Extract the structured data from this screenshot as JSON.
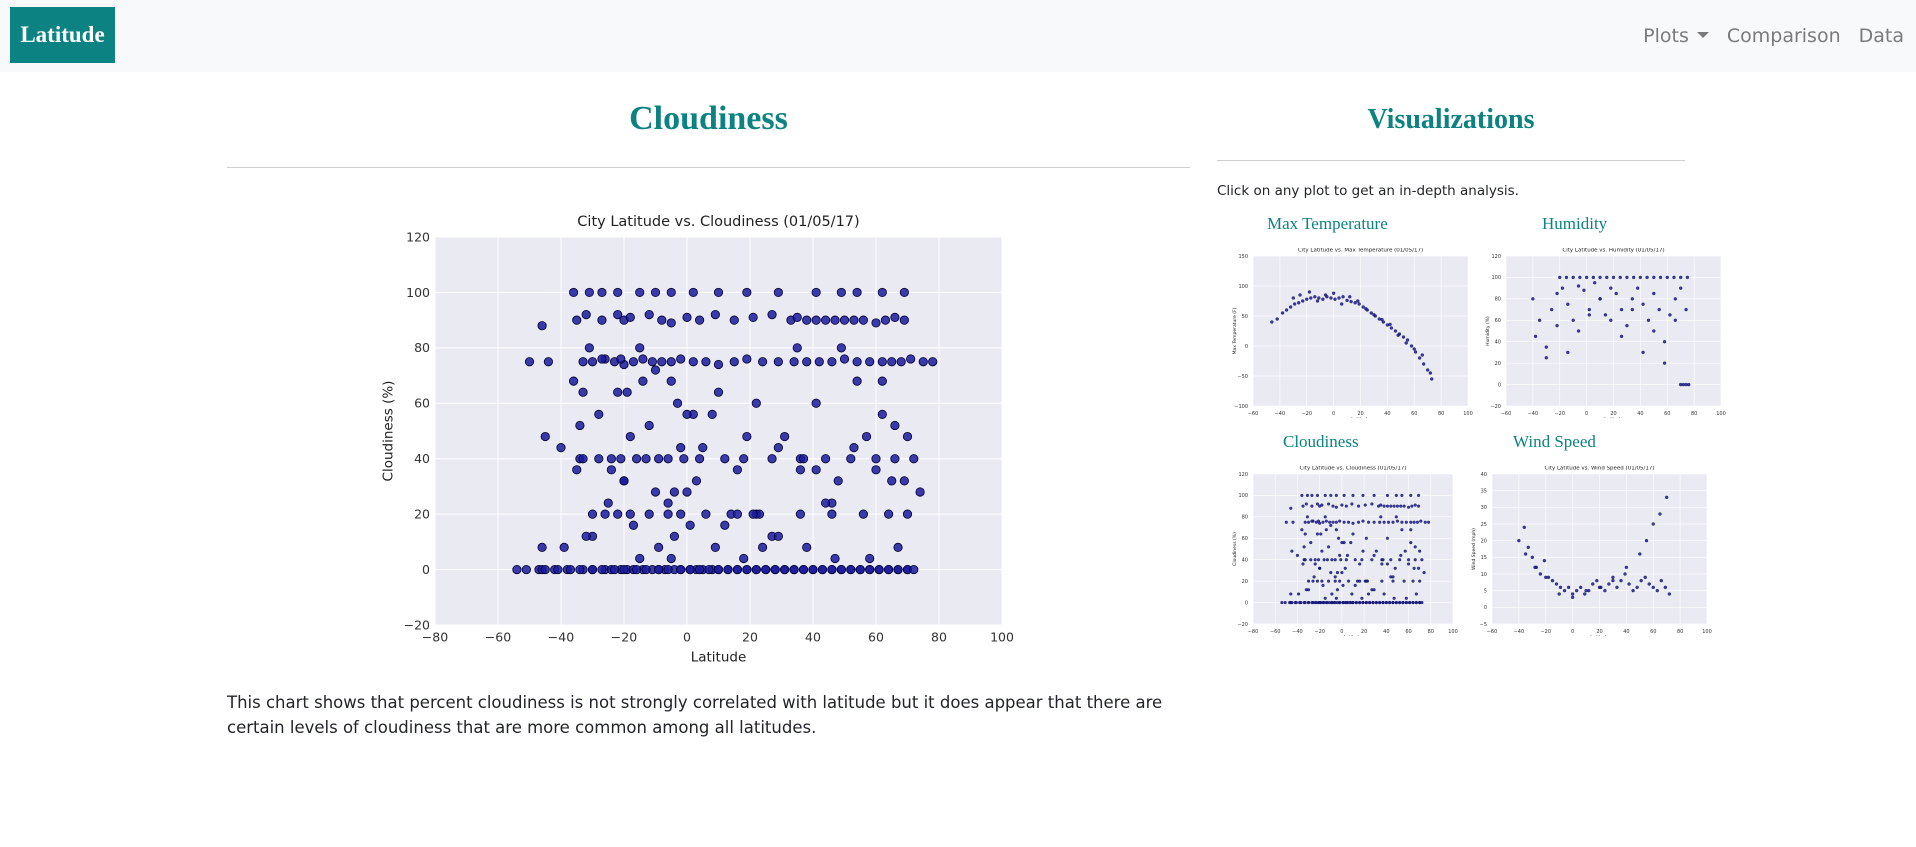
{
  "navbar": {
    "brand": "Latitude",
    "links": [
      {
        "label": "Plots",
        "has_dropdown": true
      },
      {
        "label": "Comparison"
      },
      {
        "label": "Data"
      }
    ]
  },
  "main": {
    "title": "Cloudiness",
    "description": "This chart shows that percent cloudiness is not strongly correlated with latitude but it does appear that there are certain levels of cloudiness that are more common among all latitudes."
  },
  "sidebar": {
    "title": "Visualizations",
    "note": "Click on any plot to get an in-depth analysis.",
    "thumbnails": [
      {
        "label": "Max Temperature",
        "chart_title": "City Latitude vs. Max Temperature (01/05/17)"
      },
      {
        "label": "Humidity",
        "chart_title": "City Latitude vs. Humidity (01/05/17)"
      },
      {
        "label": "Cloudiness",
        "chart_title": "City Latitude vs. Cloudiness (01/05/17)"
      },
      {
        "label": "Wind Speed",
        "chart_title": "City Latitude vs. Wind Speed (01/05/17)"
      }
    ]
  },
  "colors": {
    "accent": "#0c8282",
    "plot_background": "#eaeaf2",
    "marker": "#1a1a9c"
  },
  "chart_data": [
    {
      "type": "scatter",
      "title": "City Latitude vs. Cloudiness (01/05/17)",
      "xlabel": "Latitude",
      "ylabel": "Cloudiness (%)",
      "xlim": [
        -80,
        100
      ],
      "ylim": [
        -20,
        120
      ],
      "xticks": [
        -80,
        -60,
        -40,
        -20,
        0,
        20,
        40,
        60,
        80,
        100
      ],
      "yticks": [
        -20,
        0,
        20,
        40,
        60,
        80,
        100,
        120
      ],
      "grid": true,
      "x": [
        -54,
        -51,
        -47,
        -46,
        -42,
        -38,
        -33,
        -30,
        -26,
        -24,
        -21,
        -19,
        -17,
        -14,
        -11,
        -9,
        -7,
        -4,
        -2,
        1,
        3,
        5,
        8,
        10,
        13,
        16,
        19,
        22,
        25,
        28,
        31,
        34,
        37,
        40,
        43,
        46,
        49,
        52,
        55,
        58,
        61,
        64,
        67,
        70,
        -35,
        -32,
        -27,
        -22,
        -20,
        -18,
        -12,
        -8,
        -5,
        0,
        4,
        9,
        15,
        21,
        27,
        33,
        35,
        38,
        41,
        44,
        47,
        50,
        53,
        56,
        60,
        63,
        66,
        69,
        -50,
        -44,
        -33,
        -30,
        -26,
        -23,
        -20,
        -17,
        -14,
        -11,
        -8,
        -5,
        -2,
        2,
        6,
        10,
        15,
        19,
        24,
        29,
        34,
        38,
        42,
        46,
        50,
        54,
        58,
        62,
        65,
        68,
        71,
        75,
        78,
        -34,
        -28,
        -24,
        -21,
        -16,
        -13,
        -9,
        -6,
        -1,
        4,
        12,
        18,
        27,
        36,
        44,
        52,
        60,
        66,
        72,
        -30,
        -26,
        -22,
        -18,
        -12,
        -6,
        -2,
        6,
        14,
        22,
        36,
        46,
        56,
        64,
        70,
        -45,
        -40,
        -34,
        -28,
        -24,
        -19,
        -14,
        -10,
        -6,
        -3,
        3,
        8,
        16,
        23,
        31,
        37,
        41,
        48,
        53,
        60,
        66,
        70,
        74,
        -39,
        -30,
        -25,
        -20,
        -15,
        -9,
        -4,
        1,
        9,
        18,
        27,
        38,
        46,
        58,
        67,
        -36,
        -31,
        -27,
        -22,
        -15,
        -10,
        -5,
        2,
        10,
        19,
        29,
        41,
        49,
        54,
        62,
        69,
        -36,
        -31,
        -27,
        -22,
        -15,
        -10,
        -5,
        2,
        10,
        19,
        29,
        41,
        49,
        54,
        62,
        69,
        -46,
        -35,
        -21,
        -2,
        16,
        35,
        65,
        -32,
        -18,
        -4,
        12,
        24,
        47,
        -45,
        -41,
        -37,
        -34,
        -30,
        -27,
        -23,
        -20,
        -16,
        -13,
        -9,
        -6,
        -2,
        1,
        4,
        7,
        10,
        13,
        16,
        19,
        22,
        25,
        28,
        31,
        34,
        37,
        40,
        43,
        46,
        49,
        52,
        55,
        58,
        61,
        64,
        67,
        70,
        72,
        -33,
        -17,
        -5,
        0,
        21,
        29,
        44,
        57,
        62,
        -20,
        -12,
        0,
        5,
        22,
        36,
        -46,
        -33
      ],
      "y": [
        0,
        0,
        0,
        0,
        0,
        0,
        0,
        0,
        0,
        0,
        0,
        0,
        0,
        0,
        0,
        0,
        0,
        0,
        0,
        0,
        0,
        0,
        0,
        0,
        0,
        0,
        0,
        0,
        0,
        0,
        0,
        0,
        0,
        0,
        0,
        0,
        0,
        0,
        0,
        0,
        0,
        0,
        0,
        0,
        90,
        92,
        90,
        92,
        90,
        91,
        92,
        90,
        89,
        91,
        90,
        92,
        90,
        91,
        92,
        90,
        91,
        90,
        90,
        90,
        90,
        90,
        90,
        90,
        89,
        90,
        91,
        90,
        75,
        75,
        75,
        75,
        76,
        75,
        74,
        75,
        76,
        75,
        75,
        75,
        76,
        75,
        75,
        74,
        75,
        76,
        75,
        75,
        75,
        75,
        75,
        75,
        76,
        75,
        75,
        75,
        75,
        75,
        76,
        75,
        75,
        40,
        40,
        40,
        40,
        40,
        40,
        40,
        40,
        40,
        40,
        40,
        40,
        40,
        40,
        40,
        40,
        40,
        40,
        40,
        20,
        20,
        20,
        20,
        20,
        20,
        20,
        20,
        20,
        20,
        20,
        20,
        20,
        20,
        20,
        48,
        44,
        52,
        56,
        36,
        64,
        68,
        28,
        24,
        60,
        32,
        56,
        36,
        20,
        48,
        40,
        60,
        32,
        44,
        36,
        52,
        48,
        28,
        8,
        12,
        24,
        32,
        4,
        8,
        12,
        16,
        8,
        4,
        12,
        8,
        24,
        4,
        8,
        100,
        100,
        100,
        100,
        100,
        100,
        100,
        100,
        100,
        100,
        100,
        100,
        100,
        100,
        100,
        100,
        68,
        80,
        76,
        64,
        80,
        72,
        68,
        56,
        64,
        48,
        44,
        36,
        80,
        68,
        56,
        32,
        88,
        36,
        76,
        44,
        20,
        80,
        32,
        12,
        48,
        28,
        16,
        8,
        4,
        0,
        0,
        0,
        0,
        0,
        0,
        0,
        0,
        0,
        0,
        0,
        0,
        0,
        0,
        0,
        0,
        0,
        0,
        0,
        0,
        0,
        0,
        0,
        0,
        0,
        0,
        0,
        0,
        0,
        0,
        0,
        0,
        0,
        0,
        0,
        0,
        0,
        0,
        40,
        16,
        4,
        56,
        20,
        12,
        24,
        48,
        68,
        32,
        52,
        28,
        44,
        60,
        36,
        8,
        64
      ]
    },
    {
      "type": "scatter",
      "title": "City Latitude vs. Max Temperature (01/05/17)",
      "xlabel": "Latitude",
      "ylabel": "Max Temperature (F)",
      "xlim": [
        -60,
        100
      ],
      "ylim": [
        -100,
        150
      ],
      "xticks": [
        -60,
        -40,
        -20,
        0,
        20,
        40,
        60,
        80,
        100
      ],
      "yticks": [
        -100,
        -50,
        0,
        50,
        100,
        150
      ],
      "x": [
        -46,
        -42,
        -38,
        -35,
        -32,
        -29,
        -26,
        -23,
        -20,
        -17,
        -14,
        -11,
        -8,
        -5,
        -2,
        1,
        4,
        7,
        10,
        13,
        16,
        19,
        22,
        25,
        28,
        31,
        34,
        37,
        40,
        43,
        46,
        49,
        52,
        55,
        58,
        61,
        64,
        67,
        70,
        73,
        -30,
        -25,
        -18,
        -12,
        -6,
        0,
        6,
        12,
        18,
        24,
        30,
        36,
        42,
        48,
        54,
        60,
        66,
        72
      ],
      "y": [
        40,
        45,
        55,
        60,
        65,
        70,
        72,
        75,
        78,
        80,
        82,
        80,
        78,
        82,
        80,
        78,
        80,
        82,
        76,
        74,
        72,
        70,
        65,
        60,
        55,
        50,
        45,
        40,
        35,
        30,
        25,
        20,
        15,
        10,
        0,
        -10,
        -20,
        -30,
        -40,
        -55,
        80,
        85,
        90,
        75,
        85,
        88,
        70,
        82,
        75,
        62,
        52,
        44,
        36,
        18,
        5,
        -5,
        -15,
        -45
      ]
    },
    {
      "type": "scatter",
      "title": "City Latitude vs. Humidity (01/05/17)",
      "xlabel": "Latitude",
      "ylabel": "Humidity (%)",
      "xlim": [
        -60,
        100
      ],
      "ylim": [
        -20,
        120
      ],
      "xticks": [
        -60,
        -40,
        -20,
        0,
        20,
        40,
        60,
        80,
        100
      ],
      "yticks": [
        -20,
        0,
        20,
        40,
        60,
        80,
        100,
        120
      ],
      "x": [
        -20,
        -15,
        -10,
        -5,
        0,
        5,
        10,
        15,
        20,
        25,
        30,
        35,
        40,
        45,
        50,
        55,
        60,
        65,
        70,
        75,
        -40,
        -35,
        -30,
        -26,
        -22,
        -18,
        -14,
        -10,
        -6,
        -2,
        2,
        6,
        10,
        14,
        18,
        22,
        26,
        30,
        34,
        38,
        42,
        46,
        50,
        54,
        58,
        62,
        66,
        70,
        74,
        -38,
        -30,
        -22,
        -14,
        -6,
        2,
        10,
        18,
        26,
        34,
        42,
        50,
        58,
        66,
        70,
        72,
        74,
        76
      ],
      "y": [
        100,
        100,
        100,
        100,
        100,
        100,
        100,
        100,
        100,
        100,
        100,
        100,
        100,
        100,
        100,
        100,
        100,
        100,
        100,
        100,
        80,
        60,
        35,
        70,
        85,
        90,
        75,
        60,
        92,
        88,
        70,
        95,
        80,
        65,
        90,
        85,
        70,
        55,
        80,
        90,
        75,
        60,
        85,
        70,
        40,
        65,
        80,
        90,
        70,
        45,
        25,
        55,
        30,
        50,
        65,
        80,
        60,
        45,
        70,
        30,
        50,
        20,
        60,
        0,
        0,
        0,
        0
      ]
    },
    {
      "type": "scatter",
      "title": "City Latitude vs. Wind Speed (01/05/17)",
      "xlabel": "Latitude",
      "ylabel": "Wind Speed (mph)",
      "xlim": [
        -60,
        100
      ],
      "ylim": [
        -5,
        40
      ],
      "xticks": [
        -60,
        -40,
        -20,
        0,
        20,
        40,
        60,
        80,
        100
      ],
      "yticks": [
        -5,
        0,
        5,
        10,
        15,
        20,
        25,
        30,
        35,
        40
      ],
      "x": [
        -40,
        -36,
        -33,
        -30,
        -27,
        -24,
        -21,
        -18,
        -15,
        -12,
        -9,
        -6,
        -3,
        0,
        3,
        6,
        9,
        12,
        15,
        18,
        21,
        24,
        27,
        30,
        33,
        36,
        39,
        42,
        45,
        48,
        51,
        54,
        57,
        60,
        63,
        66,
        69,
        72,
        -35,
        -28,
        -20,
        -10,
        0,
        10,
        20,
        30,
        40,
        50,
        55,
        60,
        65,
        70
      ],
      "y": [
        20,
        24,
        18,
        15,
        12,
        10,
        14,
        9,
        8,
        7,
        6,
        5,
        6,
        4,
        5,
        6,
        4,
        5,
        7,
        8,
        6,
        5,
        7,
        9,
        6,
        8,
        10,
        7,
        5,
        6,
        8,
        9,
        7,
        6,
        5,
        8,
        6,
        4,
        16,
        12,
        9,
        4,
        3,
        5,
        6,
        8,
        12,
        16,
        20,
        25,
        28,
        33
      ]
    }
  ]
}
